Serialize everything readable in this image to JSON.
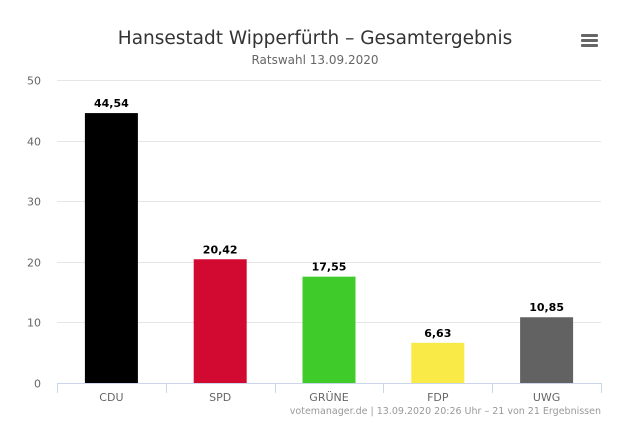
{
  "menu": {
    "icon": "hamburger-menu-icon",
    "color": "#666666"
  },
  "chart_data": {
    "type": "bar",
    "title": "Hansestadt Wipperfürth – Gesamtergebnis",
    "subtitle": "Ratswahl 13.09.2020",
    "xlabel": "",
    "ylabel": "",
    "categories": [
      "CDU",
      "SPD",
      "GRÜNE",
      "FDP",
      "UWG"
    ],
    "values": [
      44.54,
      20.42,
      17.55,
      6.63,
      10.85
    ],
    "data_labels": [
      "44,54",
      "20,42",
      "17,55",
      "6,63",
      "10,85"
    ],
    "colors": [
      "#000000",
      "#d20a32",
      "#3fcb2a",
      "#f9ea47",
      "#626262"
    ],
    "ylim": [
      0,
      50
    ],
    "yticks": [
      0,
      10,
      20,
      30,
      40,
      50
    ],
    "grid": true,
    "legend": "none",
    "credits": "votemanager.de | 13.09.2020 20:26 Uhr – 21 von 21 Ergebnissen"
  }
}
